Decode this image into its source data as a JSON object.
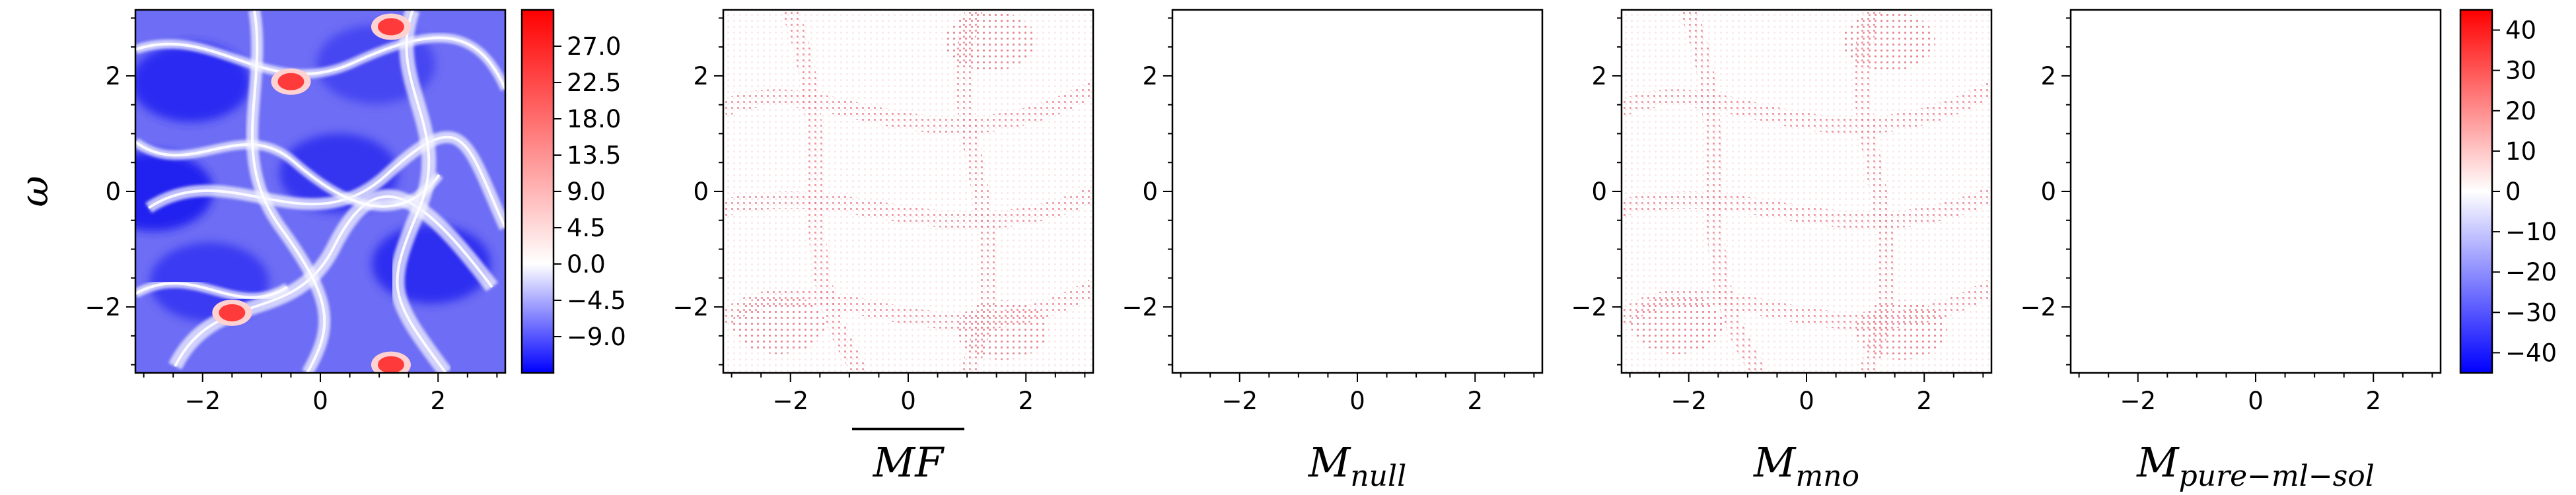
{
  "chart_data": [
    {
      "type": "heatmap",
      "title": "",
      "ylabel": "ω",
      "xlabel": "",
      "xlim": [
        -3.1416,
        3.1416
      ],
      "ylim": [
        -3.1416,
        3.1416
      ],
      "xticks": [
        -2,
        0,
        2
      ],
      "yticks": [
        -2,
        0,
        2
      ],
      "xtick_labels": [
        "−2",
        "0",
        "2"
      ],
      "ytick_labels": [
        "−2",
        "0",
        "2"
      ],
      "colormap": "bwr",
      "colorbar": {
        "range": [
          -13.5,
          31.5
        ],
        "ticks": [
          27.0,
          22.5,
          18.0,
          13.5,
          9.0,
          4.5,
          0.0,
          -4.5,
          -9.0
        ],
        "tick_labels": [
          "27.0",
          "22.5",
          "18.0",
          "13.5",
          "9.0",
          "4.5",
          "0.0",
          "−4.5",
          "−9.0"
        ]
      },
      "features": {
        "red_vortices": [
          [
            1.2,
            2.85
          ],
          [
            -0.5,
            1.9
          ],
          [
            1.2,
            -3.0
          ],
          [
            -1.5,
            -2.1
          ]
        ],
        "field": "turbulent vorticity, mostly blue/white filaments"
      }
    },
    {
      "type": "heatmap",
      "xlabel_base": "MF",
      "xlabel_overline": true,
      "xlim": [
        -3.1416,
        3.1416
      ],
      "ylim": [
        -3.1416,
        3.1416
      ],
      "xticks": [
        -2,
        0,
        2
      ],
      "yticks": [
        -2,
        0,
        2
      ],
      "xtick_labels": [
        "−2",
        "0",
        "2"
      ],
      "ytick_labels": [
        "−2",
        "0",
        "2"
      ],
      "colormap": "bwr",
      "content": "faint red dotted streaks, values near zero"
    },
    {
      "type": "heatmap",
      "xlabel_base": "M",
      "xlabel_sub": "null",
      "xlim": [
        -3.1416,
        3.1416
      ],
      "ylim": [
        -3.1416,
        3.1416
      ],
      "xticks": [
        -2,
        0,
        2
      ],
      "yticks": [
        -2,
        0,
        2
      ],
      "xtick_labels": [
        "−2",
        "0",
        "2"
      ],
      "ytick_labels": [
        "−2",
        "0",
        "2"
      ],
      "colormap": "bwr",
      "content": "blank (all zero)"
    },
    {
      "type": "heatmap",
      "xlabel_base": "M",
      "xlabel_sub": "mno",
      "xlim": [
        -3.1416,
        3.1416
      ],
      "ylim": [
        -3.1416,
        3.1416
      ],
      "xticks": [
        -2,
        0,
        2
      ],
      "yticks": [
        -2,
        0,
        2
      ],
      "xtick_labels": [
        "−2",
        "0",
        "2"
      ],
      "ytick_labels": [
        "−2",
        "0",
        "2"
      ],
      "colormap": "bwr",
      "content": "faint red dotted streaks, values near zero"
    },
    {
      "type": "heatmap",
      "xlabel_base": "M",
      "xlabel_sub": "pure−ml−sol",
      "xlim": [
        -3.1416,
        3.1416
      ],
      "ylim": [
        -3.1416,
        3.1416
      ],
      "xticks": [
        -2,
        0,
        2
      ],
      "yticks": [
        -2,
        0,
        2
      ],
      "xtick_labels": [
        "−2",
        "0",
        "2"
      ],
      "ytick_labels": [
        "−2",
        "0",
        "2"
      ],
      "colormap": "bwr",
      "content": "blank (all zero)",
      "colorbar": {
        "range": [
          -45,
          45
        ],
        "ticks": [
          40,
          30,
          20,
          10,
          0,
          -10,
          -20,
          -30,
          -40
        ],
        "tick_labels": [
          "40",
          "30",
          "20",
          "10",
          "0",
          "−10",
          "−20",
          "−30",
          "−40"
        ]
      }
    }
  ]
}
